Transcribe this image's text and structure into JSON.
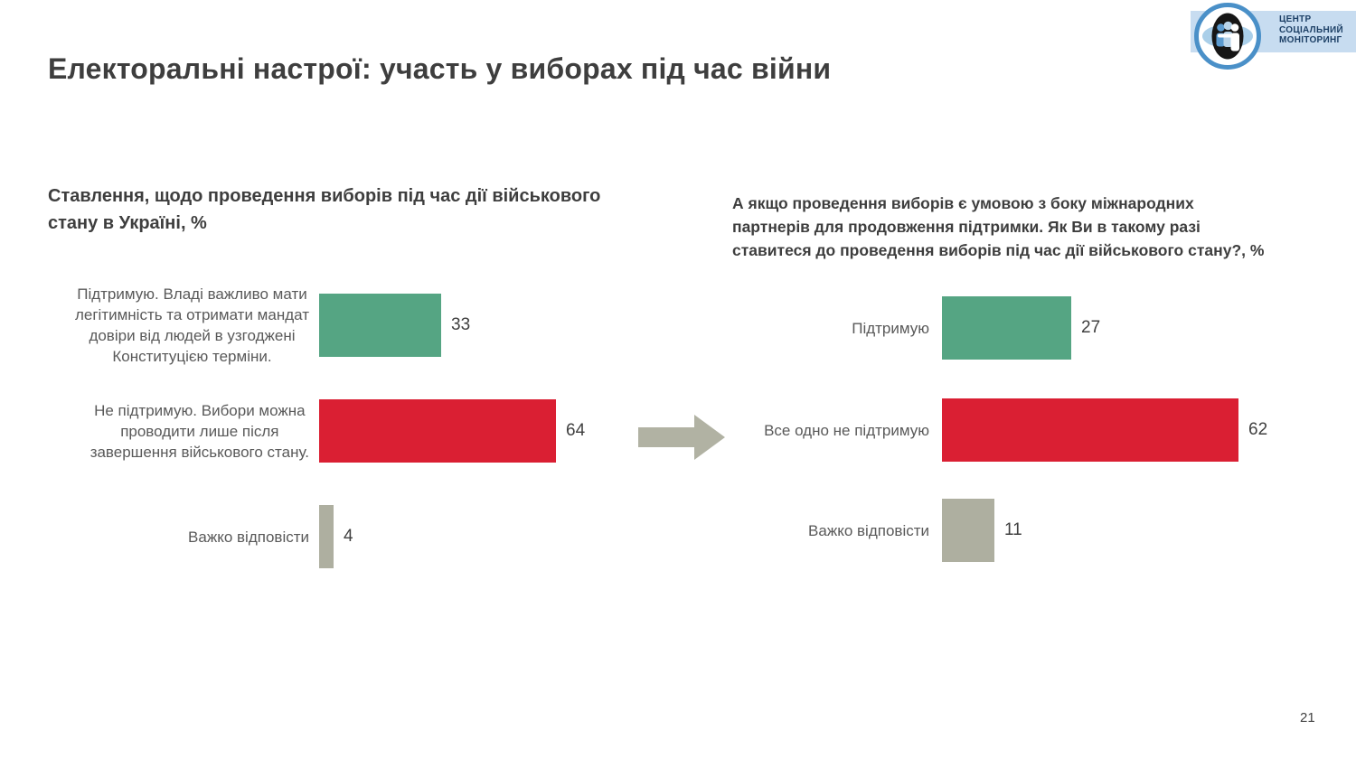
{
  "slide": {
    "title": "Електоральні настрої: участь у виборах під час війни",
    "page_number": "21"
  },
  "logo": {
    "lines": [
      "ЦЕНТР",
      "СОЦІАЛЬНИЙ",
      "МОНІТОРИНГ"
    ],
    "banner_color": "#c7dcf0",
    "ring_color": "#4a90c8",
    "text_color": "#1d4066"
  },
  "colors": {
    "support_green": "#55a583",
    "oppose_red": "#da1f33",
    "neutral_gray": "#aeafa0",
    "arrow_gray": "#b1b2a3",
    "title_gray": "#3e3e3e",
    "label_gray": "#595959"
  },
  "chart_data": [
    {
      "type": "bar",
      "orientation": "horizontal",
      "title": "Ставлення, щодо проведення виборів під час дії військового стану в Україні, %",
      "title_lines": [
        "Ставлення, щодо проведення виборів під час дії військового",
        "стану в Україні, %"
      ],
      "categories": [
        "Підтримую. Владі важливо мати легітимність та отримати мандат довіри від людей в узгоджені Конституцією терміни.",
        "Не підтримую. Вибори можна проводити лише після завершення військового стану.",
        "Важко відповісти"
      ],
      "categories_lines": [
        [
          "Підтримую. Владі важливо мати",
          "легітимність та отримати мандат",
          "довіри від людей в узгоджені",
          "Конституцією терміни."
        ],
        [
          "Не підтримую. Вибори можна",
          "проводити лише після",
          "завершення військового  стану."
        ],
        [
          "Важко відповісти"
        ]
      ],
      "values": [
        33,
        64,
        4
      ],
      "bar_colors": [
        "#55a583",
        "#da1f33",
        "#aeafa0"
      ],
      "data_labels": true,
      "legend": "none",
      "grid": false
    },
    {
      "type": "bar",
      "orientation": "horizontal",
      "title": "А якщо проведення виборів є умовою з боку міжнародних партнерів для продовження підтримки. Як Ви в такому разі ставитеся до проведення виборів під час дії військового стану?, %",
      "title_lines": [
        "А якщо проведення виборів є умовою з боку міжнародних",
        "партнерів для продовження підтримки. Як Ви в такому разі",
        "ставитеся до проведення виборів під час дії військового стану?, %"
      ],
      "categories": [
        "Підтримую",
        "Все одно не підтримую",
        "Важко відповісти"
      ],
      "categories_lines": [
        [
          "Підтримую"
        ],
        [
          "Все одно не підтримую"
        ],
        [
          "Важко відповісти"
        ]
      ],
      "values": [
        27,
        62,
        11
      ],
      "bar_colors": [
        "#55a583",
        "#da1f33",
        "#aeafa0"
      ],
      "data_labels": true,
      "legend": "none",
      "grid": false
    }
  ]
}
